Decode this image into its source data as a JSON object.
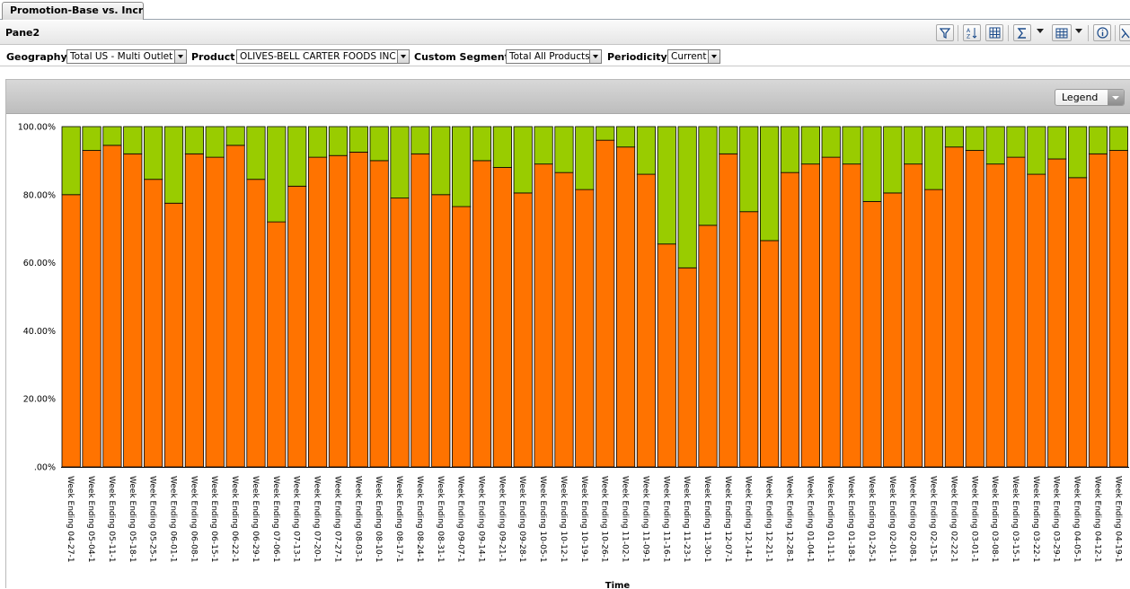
{
  "tab": {
    "label": "Promotion-Base vs. Incre..."
  },
  "pane": {
    "title": "Pane2"
  },
  "toolbar": {
    "icons": [
      "filter-icon",
      "sort-az-icon",
      "columns-icon",
      "sum-icon",
      "chart-type-icon",
      "info-icon",
      "export-icon"
    ]
  },
  "filters": {
    "geography": {
      "label": "Geography",
      "value": "Total US - Multi Outlet"
    },
    "product": {
      "label": "Product",
      "value": "OLIVES-BELL CARTER FOODS INC"
    },
    "custom_segment": {
      "label": "Custom Segment",
      "value": "Total All Products"
    },
    "periodicity": {
      "label": "Periodicity",
      "value": "Current"
    }
  },
  "legend_button": {
    "label": "Legend"
  },
  "colors": {
    "base": "#ff7300",
    "incremental": "#99cc00",
    "bar_border": "#000000"
  },
  "chart_data": {
    "type": "bar",
    "stacked": true,
    "normalized": true,
    "xlabel": "Time",
    "ylabel": "",
    "ylim": [
      0,
      100
    ],
    "yticks": [
      ".00%",
      "20.00%",
      "40.00%",
      "60.00%",
      "80.00%",
      "100.00%"
    ],
    "categories": [
      "Week Ending 04-27-1",
      "Week Ending 05-04-1",
      "Week Ending 05-11-1",
      "Week Ending 05-18-1",
      "Week Ending 05-25-1",
      "Week Ending 06-01-1",
      "Week Ending 06-08-1",
      "Week Ending 06-15-1",
      "Week Ending 06-22-1",
      "Week Ending 06-29-1",
      "Week Ending 07-06-1",
      "Week Ending 07-13-1",
      "Week Ending 07-20-1",
      "Week Ending 07-27-1",
      "Week Ending 08-03-1",
      "Week Ending 08-10-1",
      "Week Ending 08-17-1",
      "Week Ending 08-24-1",
      "Week Ending 08-31-1",
      "Week Ending 09-07-1",
      "Week Ending 09-14-1",
      "Week Ending 09-21-1",
      "Week Ending 09-28-1",
      "Week Ending 10-05-1",
      "Week Ending 10-12-1",
      "Week Ending 10-19-1",
      "Week Ending 10-26-1",
      "Week Ending 11-02-1",
      "Week Ending 11-09-1",
      "Week Ending 11-16-1",
      "Week Ending 11-23-1",
      "Week Ending 11-30-1",
      "Week Ending 12-07-1",
      "Week Ending 12-14-1",
      "Week Ending 12-21-1",
      "Week Ending 12-28-1",
      "Week Ending 01-04-1",
      "Week Ending 01-11-1",
      "Week Ending 01-18-1",
      "Week Ending 01-25-1",
      "Week Ending 02-01-1",
      "Week Ending 02-08-1",
      "Week Ending 02-15-1",
      "Week Ending 02-22-1",
      "Week Ending 03-01-1",
      "Week Ending 03-08-1",
      "Week Ending 03-15-1",
      "Week Ending 03-22-1",
      "Week Ending 03-29-1",
      "Week Ending 04-05-1",
      "Week Ending 04-12-1",
      "Week Ending 04-19-1"
    ],
    "series": [
      {
        "values": [
          80,
          93,
          94.5,
          92,
          84.5,
          77.5,
          92,
          91,
          94.5,
          84.5,
          72,
          82.5,
          91,
          91.5,
          92.5,
          90,
          79,
          92,
          80,
          76.5,
          90,
          88,
          80.5,
          89,
          86.5,
          81.5,
          96,
          94,
          86,
          65.5,
          58.5,
          71,
          92,
          75,
          66.5,
          86.5,
          89,
          91,
          89,
          78,
          80.5,
          89,
          81.5,
          94,
          93,
          89,
          91,
          86,
          90.5,
          85,
          92,
          93
        ]
      },
      {
        "values": [
          20,
          7,
          5.5,
          8,
          15.5,
          22.5,
          8,
          9,
          5.5,
          15.5,
          28,
          17.5,
          9,
          8.5,
          7.5,
          10,
          21,
          8,
          20,
          23.5,
          10,
          12,
          19.5,
          11,
          13.5,
          18.5,
          4,
          6,
          14,
          34.5,
          41.5,
          29,
          8,
          25,
          33.5,
          13.5,
          11,
          9,
          11,
          22,
          19.5,
          11,
          18.5,
          6,
          7,
          11,
          9,
          14,
          9.5,
          15,
          8,
          7
        ]
      }
    ]
  }
}
